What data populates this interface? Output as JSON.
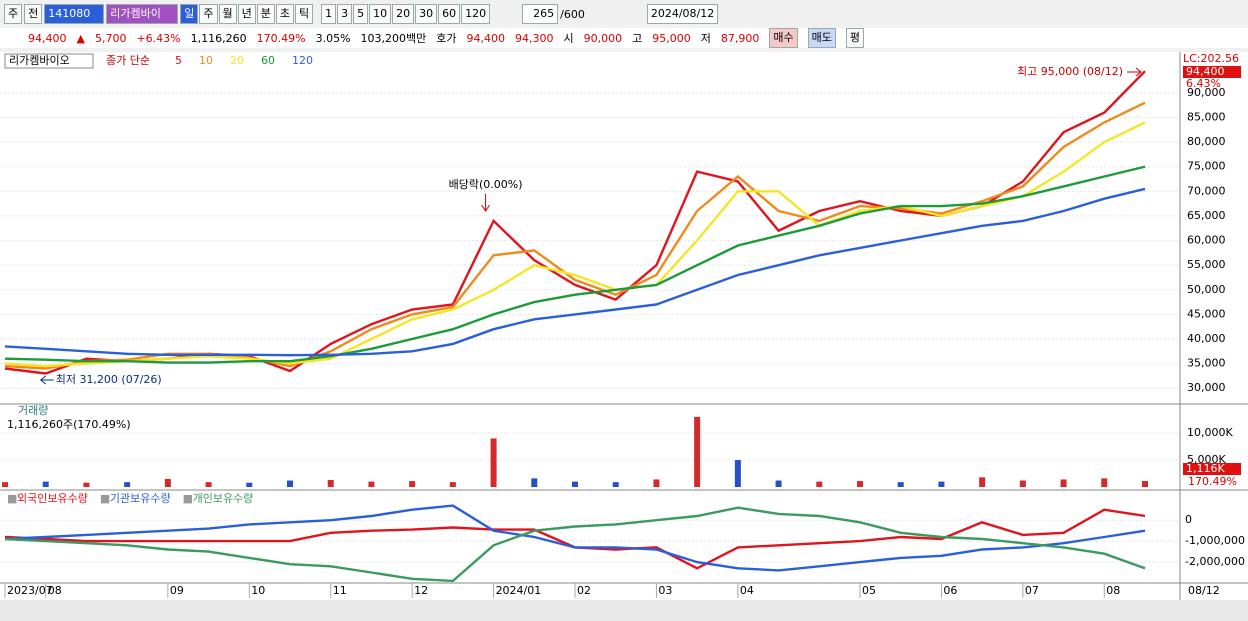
{
  "toolbar": {
    "period": "주",
    "prev": "전",
    "code": "141080",
    "name": "리가켐바이",
    "periods": [
      "일",
      "주",
      "월",
      "년",
      "분",
      "초",
      "틱"
    ],
    "counts": [
      "1",
      "3",
      "5",
      "10",
      "20",
      "30",
      "60",
      "120"
    ],
    "count": "265",
    "total": "/600",
    "date": "2024/08/12"
  },
  "quote": {
    "price": "94,400",
    "arrow": "▲",
    "change": "5,700",
    "pct": "+6.43%",
    "volume": "1,116,260",
    "vol_ratio": "170.49%",
    "turnover": "3.05%",
    "amount": "103,200백만",
    "bid_label": "호가",
    "ask": "94,400",
    "bid": "94,300",
    "open_label": "시",
    "open": "90,000",
    "high_label": "고",
    "high": "95,000",
    "low_label": "저",
    "low": "87,900",
    "buy": "매수",
    "sell": "매도",
    "avg": "평"
  },
  "chart_data": [
    {
      "type": "line",
      "legend_title": "리가켐바이오",
      "legend_label": "종가 단순",
      "grid": true,
      "ylim": [
        27000,
        98300
      ],
      "yticks": [
        {
          "value": 30000,
          "label": "30,000"
        },
        {
          "value": 35000,
          "label": "35,000"
        },
        {
          "value": 40000,
          "label": "40,000"
        },
        {
          "value": 45000,
          "label": "45,000"
        },
        {
          "value": 50000,
          "label": "50,000"
        },
        {
          "value": 55000,
          "label": "55,000"
        },
        {
          "value": 60000,
          "label": "60,000"
        },
        {
          "value": 65000,
          "label": "65,000"
        },
        {
          "value": 70000,
          "label": "70,000"
        },
        {
          "value": 75000,
          "label": "75,000"
        },
        {
          "value": 80000,
          "label": "80,000"
        },
        {
          "value": 85000,
          "label": "85,000"
        },
        {
          "value": 90000,
          "label": "90,000"
        }
      ],
      "annotations": {
        "high": "최고 95,000 (08/12)",
        "low": "최저 31,200 (07/26)",
        "event": "배당락(0.00%)"
      },
      "right_labels": {
        "lc": "LC:202.56",
        "price": "94,400",
        "pct": "6.43%"
      },
      "series": [
        {
          "name": "5",
          "color": "#e0141e",
          "values": [
            34000,
            33000,
            36000,
            35500,
            36000,
            37000,
            36500,
            33500,
            39000,
            43000,
            46000,
            47000,
            64000,
            56000,
            51000,
            48000,
            55000,
            74000,
            72000,
            62000,
            66000,
            68000,
            66000,
            65000,
            67000,
            72000,
            82000,
            86000,
            94400
          ]
        },
        {
          "name": "10",
          "color": "#f08a1c",
          "values": [
            34500,
            34000,
            35500,
            35800,
            37000,
            37000,
            36200,
            34500,
            37500,
            42000,
            45000,
            46500,
            57000,
            58000,
            52000,
            49000,
            53000,
            66000,
            73000,
            66000,
            64000,
            67000,
            66500,
            65500,
            68000,
            71000,
            79000,
            84000,
            88000
          ]
        },
        {
          "name": "20",
          "color": "#f5e625",
          "values": [
            35000,
            34500,
            35000,
            35500,
            36000,
            36500,
            36000,
            35000,
            36000,
            40000,
            44000,
            46000,
            50000,
            55000,
            53000,
            50000,
            51000,
            60000,
            70000,
            70000,
            63000,
            66000,
            67000,
            65000,
            67000,
            69000,
            74000,
            80000,
            84000
          ]
        },
        {
          "name": "60",
          "color": "#1d9a3a",
          "values": [
            36000,
            35800,
            35500,
            35500,
            35200,
            35200,
            35500,
            35500,
            36500,
            38000,
            40000,
            42000,
            45000,
            47500,
            49000,
            50000,
            51000,
            55000,
            59000,
            61000,
            63000,
            65500,
            67000,
            67000,
            67500,
            69000,
            71000,
            73000,
            75000
          ]
        },
        {
          "name": "120",
          "color": "#2b5fd9",
          "values": [
            38500,
            38000,
            37500,
            37000,
            36800,
            36800,
            36800,
            36700,
            36800,
            37000,
            37500,
            39000,
            42000,
            44000,
            45000,
            46000,
            47000,
            50000,
            53000,
            55000,
            57000,
            58500,
            60000,
            61500,
            63000,
            64000,
            66000,
            68500,
            70500
          ]
        }
      ]
    },
    {
      "type": "bar",
      "title": "거래량",
      "subtitle": "1,116,260주(170.49%)",
      "last_label": "1,116K",
      "last_pct": "170.49%",
      "ylim": [
        0,
        15200000
      ],
      "yticks": [
        {
          "value": 5000000,
          "label": "5,000K"
        },
        {
          "value": 10000000,
          "label": "10,000K"
        }
      ],
      "up_color": "#d42a2a",
      "down_color": "#2550c8",
      "values": [
        900000,
        1000000,
        800000,
        900000,
        1500000,
        900000,
        800000,
        1200000,
        1300000,
        1000000,
        1100000,
        900000,
        9000000,
        1600000,
        1000000,
        900000,
        1400000,
        13000000,
        5000000,
        1200000,
        1000000,
        1100000,
        900000,
        1000000,
        1800000,
        1200000,
        1400000,
        1600000,
        1116260
      ]
    },
    {
      "type": "line",
      "legend_marker": "■",
      "categories": [
        "2023/07",
        "08",
        null,
        null,
        "09",
        null,
        "10",
        null,
        "11",
        null,
        "12",
        null,
        "2024/01",
        null,
        "02",
        null,
        "03",
        null,
        "04",
        null,
        null,
        "05",
        null,
        "06",
        null,
        "07",
        null,
        "08",
        null
      ],
      "last_date": "08/12",
      "ylim": [
        -3000000,
        1300000
      ],
      "yticks": [
        {
          "value": 0,
          "label": "0"
        },
        {
          "value": -1000000,
          "label": "-1,000,000"
        },
        {
          "value": -2000000,
          "label": "-2,000,000"
        }
      ],
      "series": [
        {
          "name": "외국인보유수량",
          "color": "#e0141e",
          "values": [
            -800000,
            -900000,
            -1000000,
            -1000000,
            -1000000,
            -1000000,
            -1000000,
            -1000000,
            -600000,
            -500000,
            -450000,
            -350000,
            -450000,
            -450000,
            -1300000,
            -1400000,
            -1300000,
            -2300000,
            -1300000,
            -1200000,
            -1100000,
            -1000000,
            -800000,
            -900000,
            -100000,
            -700000,
            -600000,
            500000,
            200000
          ]
        },
        {
          "name": "기관보유수량",
          "color": "#2b5fd9",
          "values": [
            -900000,
            -800000,
            -700000,
            -600000,
            -500000,
            -400000,
            -200000,
            -100000,
            0,
            200000,
            500000,
            700000,
            -500000,
            -800000,
            -1300000,
            -1300000,
            -1400000,
            -2000000,
            -2300000,
            -2400000,
            -2200000,
            -2000000,
            -1800000,
            -1700000,
            -1400000,
            -1300000,
            -1100000,
            -800000,
            -500000
          ]
        },
        {
          "name": "개인보유수량",
          "color": "#3c9a5f",
          "values": [
            -900000,
            -1000000,
            -1100000,
            -1200000,
            -1400000,
            -1500000,
            -1800000,
            -2100000,
            -2200000,
            -2500000,
            -2800000,
            -2900000,
            -1200000,
            -500000,
            -300000,
            -200000,
            0,
            200000,
            600000,
            300000,
            200000,
            -100000,
            -600000,
            -800000,
            -900000,
            -1100000,
            -1300000,
            -1600000,
            -2300000
          ]
        }
      ]
    }
  ]
}
